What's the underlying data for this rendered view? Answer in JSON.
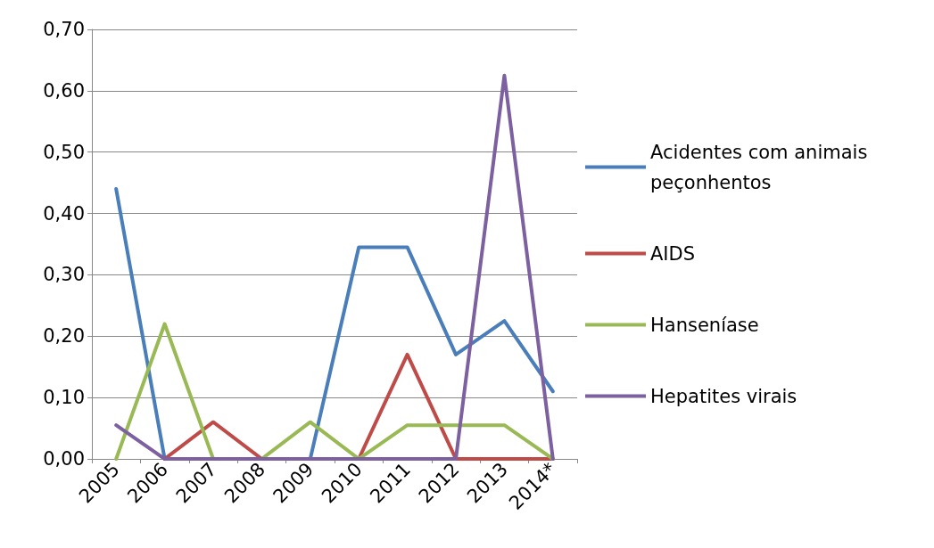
{
  "chart_data": {
    "type": "line",
    "categories": [
      "2005",
      "2006",
      "2007",
      "2008",
      "2009",
      "2010",
      "2011",
      "2012",
      "2013",
      "2014*"
    ],
    "series": [
      {
        "name": "Acidentes com animais peçonhentos",
        "color": "#4a7ebb",
        "values": [
          0.44,
          0,
          0,
          0,
          0,
          0.345,
          0.345,
          0.17,
          0.225,
          0.11
        ]
      },
      {
        "name": "AIDS",
        "color": "#be4b48",
        "values": [
          null,
          0,
          0.06,
          0,
          0,
          0,
          0.17,
          0,
          0,
          0
        ]
      },
      {
        "name": "Hanseníase",
        "color": "#98b954",
        "values": [
          0,
          0.22,
          0,
          0,
          0.06,
          0,
          0.055,
          0.055,
          0.055,
          0
        ]
      },
      {
        "name": "Hepatites virais",
        "color": "#7d60a0",
        "values": [
          0.055,
          0,
          0,
          0,
          0,
          0,
          0,
          0,
          0.625,
          0
        ]
      }
    ],
    "ylim": [
      0,
      0.7
    ],
    "yticks": [
      {
        "value": 0,
        "label": "0,00"
      },
      {
        "value": 0.1,
        "label": "0,10"
      },
      {
        "value": 0.2,
        "label": "0,20"
      },
      {
        "value": 0.3,
        "label": "0,30"
      },
      {
        "value": 0.4,
        "label": "0,40"
      },
      {
        "value": 0.5,
        "label": "0,50"
      },
      {
        "value": 0.6,
        "label": "0,60"
      },
      {
        "value": 0.7,
        "label": "0,70"
      }
    ],
    "grid": "y",
    "legend": "right",
    "marker": "none",
    "line_style": "solid"
  }
}
